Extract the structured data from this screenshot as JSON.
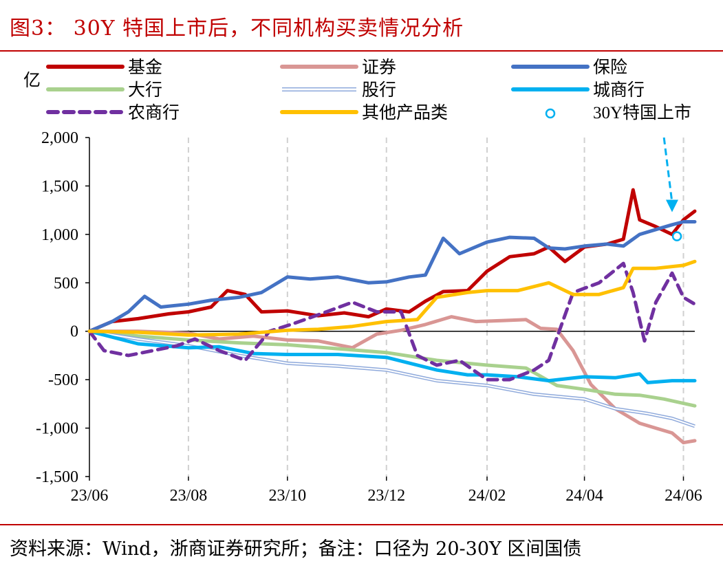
{
  "header": {
    "title": "图3： 30Y 特国上市后，不同机构买卖情况分析"
  },
  "footer": {
    "source": "资料来源：Wind，浙商证券研究所；备注：口径为 20-30Y 区间国债"
  },
  "chart_data": {
    "type": "line",
    "title": "图3： 30Y 特国上市后，不同机构买卖情况分析",
    "ylabel": "亿",
    "xlabel": "",
    "x_tick_labels": [
      "23/06",
      "23/08",
      "23/10",
      "23/12",
      "24/02",
      "24/04",
      "24/06"
    ],
    "y_tick_labels": [
      "2,000",
      "1,500",
      "1,000",
      "500",
      "0",
      "-500",
      "-1,000",
      "-1,500"
    ],
    "y_ticks": [
      2000,
      1500,
      1000,
      500,
      0,
      -500,
      -1000,
      -1500
    ],
    "ylim": [
      -1500,
      2000
    ],
    "x_domain": [
      "2023-06-01",
      "2024-06-08"
    ],
    "grid": "vertical-dashed",
    "legend_position": "top",
    "series": [
      {
        "name": "基金",
        "color": "#c00000",
        "width": 5,
        "dash": "solid",
        "x": [
          "2023-06-01",
          "2023-06-15",
          "2023-07-01",
          "2023-07-20",
          "2023-08-01",
          "2023-08-15",
          "2023-08-25",
          "2023-09-05",
          "2023-09-15",
          "2023-10-01",
          "2023-10-20",
          "2023-11-05",
          "2023-11-20",
          "2023-12-01",
          "2023-12-15",
          "2023-12-25",
          "2024-01-05",
          "2024-01-20",
          "2024-02-01",
          "2024-02-15",
          "2024-03-01",
          "2024-03-10",
          "2024-03-20",
          "2024-04-01",
          "2024-04-15",
          "2024-04-25",
          "2024-05-01",
          "2024-05-05",
          "2024-05-15",
          "2024-05-25",
          "2024-06-01",
          "2024-06-08"
        ],
        "y": [
          0,
          100,
          130,
          180,
          200,
          250,
          420,
          380,
          200,
          210,
          160,
          190,
          150,
          230,
          200,
          310,
          410,
          420,
          620,
          770,
          800,
          870,
          720,
          870,
          900,
          950,
          1460,
          1150,
          1080,
          1000,
          1150,
          1240
        ]
      },
      {
        "name": "证券",
        "color": "#d99694",
        "width": 5,
        "dash": "solid",
        "x": [
          "2023-06-01",
          "2023-07-01",
          "2023-08-01",
          "2023-08-20",
          "2023-09-10",
          "2023-10-01",
          "2023-10-20",
          "2023-11-10",
          "2023-11-25",
          "2023-12-10",
          "2023-12-25",
          "2024-01-10",
          "2024-01-25",
          "2024-02-10",
          "2024-02-25",
          "2024-03-05",
          "2024-03-15",
          "2024-03-25",
          "2024-04-05",
          "2024-04-20",
          "2024-05-05",
          "2024-05-15",
          "2024-05-25",
          "2024-06-01",
          "2024-06-08"
        ],
        "y": [
          0,
          0,
          -20,
          -80,
          -50,
          -90,
          -100,
          -170,
          -30,
          10,
          70,
          150,
          100,
          110,
          120,
          30,
          20,
          -200,
          -550,
          -800,
          -950,
          -1000,
          -1050,
          -1150,
          -1130
        ]
      },
      {
        "name": "保险",
        "color": "#4472c4",
        "width": 5,
        "dash": "solid",
        "x": [
          "2023-06-01",
          "2023-06-15",
          "2023-06-25",
          "2023-07-05",
          "2023-07-15",
          "2023-08-01",
          "2023-08-15",
          "2023-09-01",
          "2023-09-15",
          "2023-10-01",
          "2023-10-15",
          "2023-11-01",
          "2023-11-20",
          "2023-12-01",
          "2023-12-15",
          "2023-12-25",
          "2024-01-05",
          "2024-01-15",
          "2024-02-01",
          "2024-02-15",
          "2024-03-01",
          "2024-03-10",
          "2024-03-20",
          "2024-04-01",
          "2024-04-15",
          "2024-04-25",
          "2024-05-05",
          "2024-05-15",
          "2024-05-25",
          "2024-06-01",
          "2024-06-08"
        ],
        "y": [
          0,
          100,
          200,
          360,
          250,
          280,
          320,
          350,
          400,
          560,
          540,
          560,
          500,
          510,
          560,
          580,
          960,
          800,
          920,
          970,
          960,
          860,
          850,
          880,
          900,
          880,
          1000,
          1050,
          1100,
          1130,
          1130
        ]
      },
      {
        "name": "大行",
        "color": "#a9d18e",
        "width": 5,
        "dash": "solid",
        "x": [
          "2023-06-01",
          "2023-07-01",
          "2023-08-01",
          "2023-09-01",
          "2023-10-01",
          "2023-11-01",
          "2023-12-01",
          "2024-01-01",
          "2024-02-01",
          "2024-02-25",
          "2024-03-15",
          "2024-04-01",
          "2024-04-20",
          "2024-05-05",
          "2024-05-20",
          "2024-06-08"
        ],
        "y": [
          0,
          -50,
          -90,
          -120,
          -140,
          -180,
          -220,
          -300,
          -350,
          -380,
          -560,
          -600,
          -650,
          -660,
          -700,
          -770
        ]
      },
      {
        "name": "股行",
        "color": "#8ea9db",
        "width": 5,
        "dash": "double",
        "x": [
          "2023-06-01",
          "2023-07-01",
          "2023-08-01",
          "2023-09-01",
          "2023-10-01",
          "2023-11-01",
          "2023-12-01",
          "2024-01-01",
          "2024-02-01",
          "2024-03-01",
          "2024-04-01",
          "2024-04-20",
          "2024-05-10",
          "2024-05-25",
          "2024-06-08"
        ],
        "y": [
          0,
          -80,
          -150,
          -250,
          -330,
          -360,
          -400,
          -510,
          -560,
          -650,
          -700,
          -800,
          -850,
          -900,
          -980
        ]
      },
      {
        "name": "城商行",
        "color": "#00b0f0",
        "width": 5,
        "dash": "solid",
        "x": [
          "2023-06-01",
          "2023-07-01",
          "2023-08-01",
          "2023-08-20",
          "2023-09-10",
          "2023-10-01",
          "2023-11-01",
          "2023-12-01",
          "2024-01-01",
          "2024-01-20",
          "2024-02-01",
          "2024-02-20",
          "2024-03-10",
          "2024-04-01",
          "2024-04-20",
          "2024-05-05",
          "2024-05-10",
          "2024-05-25",
          "2024-06-08"
        ],
        "y": [
          0,
          -130,
          -170,
          -160,
          -230,
          -240,
          -240,
          -270,
          -400,
          -450,
          -450,
          -470,
          -510,
          -470,
          -480,
          -440,
          -530,
          -510,
          -510
        ]
      },
      {
        "name": "农商行",
        "color": "#7030a0",
        "width": 5,
        "dash": "dashed",
        "x": [
          "2023-06-01",
          "2023-06-10",
          "2023-06-25",
          "2023-07-10",
          "2023-07-25",
          "2023-08-05",
          "2023-08-20",
          "2023-09-05",
          "2023-09-20",
          "2023-10-05",
          "2023-10-25",
          "2023-11-10",
          "2023-11-25",
          "2023-12-10",
          "2023-12-20",
          "2024-01-01",
          "2024-01-15",
          "2024-02-01",
          "2024-02-15",
          "2024-03-01",
          "2024-03-10",
          "2024-03-25",
          "2024-04-10",
          "2024-04-25",
          "2024-05-01",
          "2024-05-08",
          "2024-05-15",
          "2024-05-25",
          "2024-06-01",
          "2024-06-08"
        ],
        "y": [
          0,
          -200,
          -250,
          -200,
          -150,
          -80,
          -200,
          -300,
          0,
          80,
          200,
          300,
          200,
          200,
          -250,
          -350,
          -300,
          -500,
          -500,
          -400,
          -300,
          400,
          500,
          700,
          400,
          -100,
          300,
          600,
          350,
          280
        ]
      },
      {
        "name": "其他产品类",
        "color": "#ffc000",
        "width": 5,
        "dash": "solid",
        "x": [
          "2023-06-01",
          "2023-07-01",
          "2023-08-01",
          "2023-09-01",
          "2023-10-01",
          "2023-10-20",
          "2023-11-10",
          "2023-12-01",
          "2023-12-20",
          "2024-01-01",
          "2024-01-20",
          "2024-02-01",
          "2024-02-20",
          "2024-03-10",
          "2024-03-25",
          "2024-04-10",
          "2024-04-25",
          "2024-05-01",
          "2024-05-15",
          "2024-06-01",
          "2024-06-08"
        ],
        "y": [
          0,
          -10,
          -40,
          -30,
          10,
          20,
          50,
          100,
          120,
          350,
          400,
          420,
          420,
          500,
          380,
          380,
          450,
          650,
          650,
          680,
          720
        ]
      }
    ],
    "marker": {
      "name": "30Y特国上市",
      "x": "2024-05-28",
      "y": 980,
      "color": "#00b0f0"
    },
    "annotation_arrow": {
      "color": "#00b0f0",
      "from": [
        "2024-05-20",
        2000
      ],
      "to": [
        "2024-05-25",
        1230
      ]
    }
  }
}
